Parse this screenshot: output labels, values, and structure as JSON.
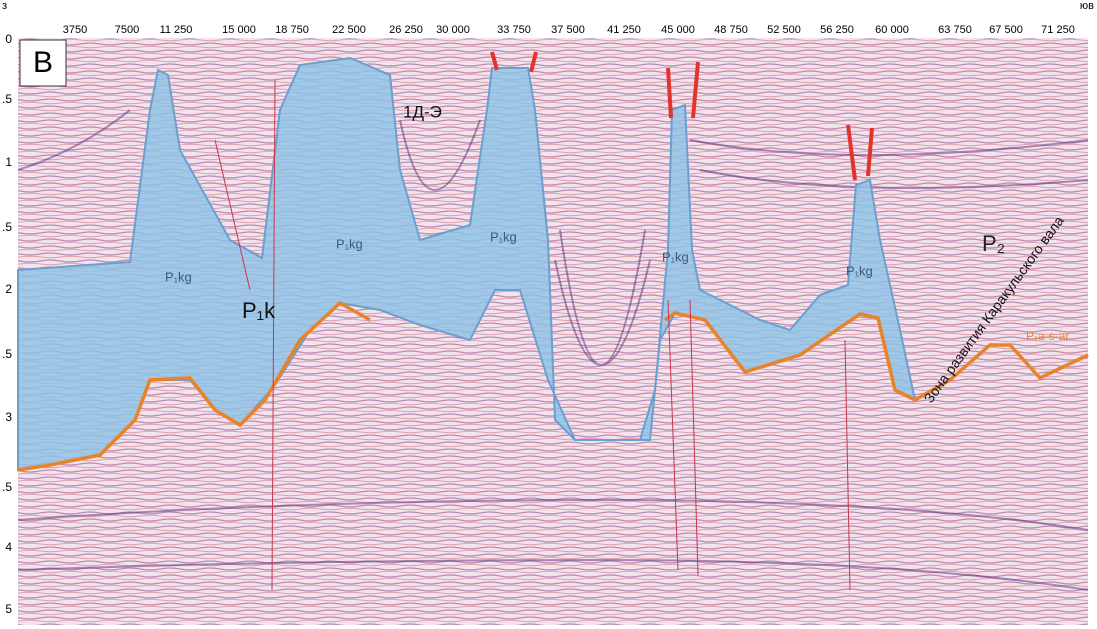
{
  "header": {
    "left_direction": "з",
    "right_direction": "юв"
  },
  "x_scale": [
    "3750",
    "7500",
    "11 250",
    "15 000",
    "18 750",
    "22 500",
    "26 250",
    "30 000",
    "33 750",
    "37 500",
    "41 250",
    "45 000",
    "48 750",
    "52 500",
    "56 250",
    "60 000",
    "63 750",
    "67 500",
    "71 250"
  ],
  "y_scale": [
    "0",
    ".5",
    "1",
    ".5",
    "2",
    ".5",
    "3",
    ".5",
    "4",
    "5"
  ],
  "panel_label": "В",
  "annotations": {
    "salt_bodies": [
      "P₁kg",
      "P₁kg",
      "P₁kg",
      "P₁kg",
      "P₁kg"
    ],
    "kungur": "P₁k",
    "upper_complex": "1Д-Э",
    "upper_permian": "P₂",
    "subsalt": "P₁a-s-ar",
    "zone": "Зона развития Каракульского вала"
  }
}
